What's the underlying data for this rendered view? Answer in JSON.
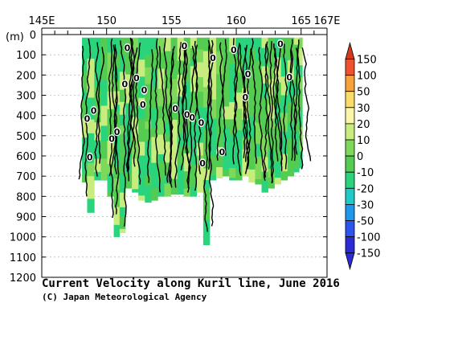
{
  "chart_data": {
    "type": "heatmap",
    "title": "Current Velocity along Kuril line, June 2016",
    "credit": "(C) Japan Meteorological Agency",
    "ylabel": "(m)",
    "x_ticks": [
      {
        "label": "145E",
        "value": 145
      },
      {
        "label": "150",
        "value": 150
      },
      {
        "label": "155",
        "value": 155
      },
      {
        "label": "160",
        "value": 160
      },
      {
        "label": "165",
        "value": 165
      },
      {
        "label": "167E",
        "value": 167
      }
    ],
    "xlim": [
      145,
      167
    ],
    "ylim": [
      0,
      1200
    ],
    "y_ticks": [
      0,
      100,
      200,
      300,
      400,
      500,
      600,
      700,
      800,
      900,
      1000,
      1100,
      1200
    ],
    "y_tick_labels": [
      "0",
      "100",
      "200",
      "300",
      "400",
      "500",
      "600",
      "700",
      "800",
      "900",
      "1000",
      "1100",
      "1200"
    ],
    "grid": "dotted-horizontal",
    "contour_label": "0",
    "colorbar": {
      "levels": [
        "150",
        "100",
        "50",
        "30",
        "20",
        "10",
        "0",
        "-10",
        "-20",
        "-30",
        "-50",
        "-100",
        "-150"
      ],
      "colors": [
        "#d23a1e",
        "#f0522e",
        "#f8a23a",
        "#fadc6a",
        "#fbf5a6",
        "#c9ec7e",
        "#7ed85a",
        "#54cc52",
        "#2ad47c",
        "#1fcac8",
        "#1e98ea",
        "#2c54ee",
        "#2c2ad4"
      ],
      "under_color": "#2c2ad4",
      "over_color": "#d23a1e"
    },
    "fill_colors": {
      "weak_positive": "#c9ec7e",
      "weak_negative": "#54cc52",
      "moderate_negative": "#2ad47c",
      "light_negative": "#7ed85a"
    },
    "columns": [
      {
        "lon": 148.2,
        "maxdepth": 730
      },
      {
        "lon": 148.8,
        "maxdepth": 880
      },
      {
        "lon": 149.3,
        "maxdepth": 720
      },
      {
        "lon": 149.8,
        "maxdepth": 720
      },
      {
        "lon": 150.3,
        "maxdepth": 800
      },
      {
        "lon": 150.8,
        "maxdepth": 1000
      },
      {
        "lon": 151.2,
        "maxdepth": 980
      },
      {
        "lon": 151.7,
        "maxdepth": 760
      },
      {
        "lon": 152.2,
        "maxdepth": 780
      },
      {
        "lon": 152.7,
        "maxdepth": 820
      },
      {
        "lon": 153.2,
        "maxdepth": 830
      },
      {
        "lon": 153.7,
        "maxdepth": 820
      },
      {
        "lon": 154.2,
        "maxdepth": 800
      },
      {
        "lon": 154.7,
        "maxdepth": 800
      },
      {
        "lon": 155.2,
        "maxdepth": 790
      },
      {
        "lon": 155.7,
        "maxdepth": 790
      },
      {
        "lon": 156.2,
        "maxdepth": 800
      },
      {
        "lon": 156.7,
        "maxdepth": 800
      },
      {
        "lon": 157.2,
        "maxdepth": 780
      },
      {
        "lon": 157.7,
        "maxdepth": 1040
      },
      {
        "lon": 158.2,
        "maxdepth": 720
      },
      {
        "lon": 158.7,
        "maxdepth": 710
      },
      {
        "lon": 159.2,
        "maxdepth": 700
      },
      {
        "lon": 159.7,
        "maxdepth": 720
      },
      {
        "lon": 160.2,
        "maxdepth": 720
      },
      {
        "lon": 160.7,
        "maxdepth": 700
      },
      {
        "lon": 161.2,
        "maxdepth": 730
      },
      {
        "lon": 161.7,
        "maxdepth": 740
      },
      {
        "lon": 162.2,
        "maxdepth": 780
      },
      {
        "lon": 162.7,
        "maxdepth": 760
      },
      {
        "lon": 163.2,
        "maxdepth": 740
      },
      {
        "lon": 163.7,
        "maxdepth": 720
      },
      {
        "lon": 164.2,
        "maxdepth": 700
      },
      {
        "lon": 164.7,
        "maxdepth": 680
      },
      {
        "lon": 165.0,
        "maxdepth": 660
      }
    ],
    "zero_labels": [
      {
        "lon": 148.7,
        "depth": 605
      },
      {
        "lon": 148.5,
        "depth": 415
      },
      {
        "lon": 149.0,
        "depth": 375
      },
      {
        "lon": 150.4,
        "depth": 515
      },
      {
        "lon": 150.8,
        "depth": 480
      },
      {
        "lon": 151.4,
        "depth": 245
      },
      {
        "lon": 151.6,
        "depth": 65
      },
      {
        "lon": 152.3,
        "depth": 215
      },
      {
        "lon": 152.9,
        "depth": 275
      },
      {
        "lon": 152.8,
        "depth": 345
      },
      {
        "lon": 155.3,
        "depth": 365
      },
      {
        "lon": 156.0,
        "depth": 55
      },
      {
        "lon": 156.2,
        "depth": 395
      },
      {
        "lon": 156.6,
        "depth": 410
      },
      {
        "lon": 157.3,
        "depth": 435
      },
      {
        "lon": 157.4,
        "depth": 635
      },
      {
        "lon": 158.2,
        "depth": 115
      },
      {
        "lon": 158.9,
        "depth": 580
      },
      {
        "lon": 159.8,
        "depth": 75
      },
      {
        "lon": 160.7,
        "depth": 310
      },
      {
        "lon": 160.9,
        "depth": 195
      },
      {
        "lon": 163.4,
        "depth": 45
      },
      {
        "lon": 164.1,
        "depth": 210
      }
    ]
  }
}
